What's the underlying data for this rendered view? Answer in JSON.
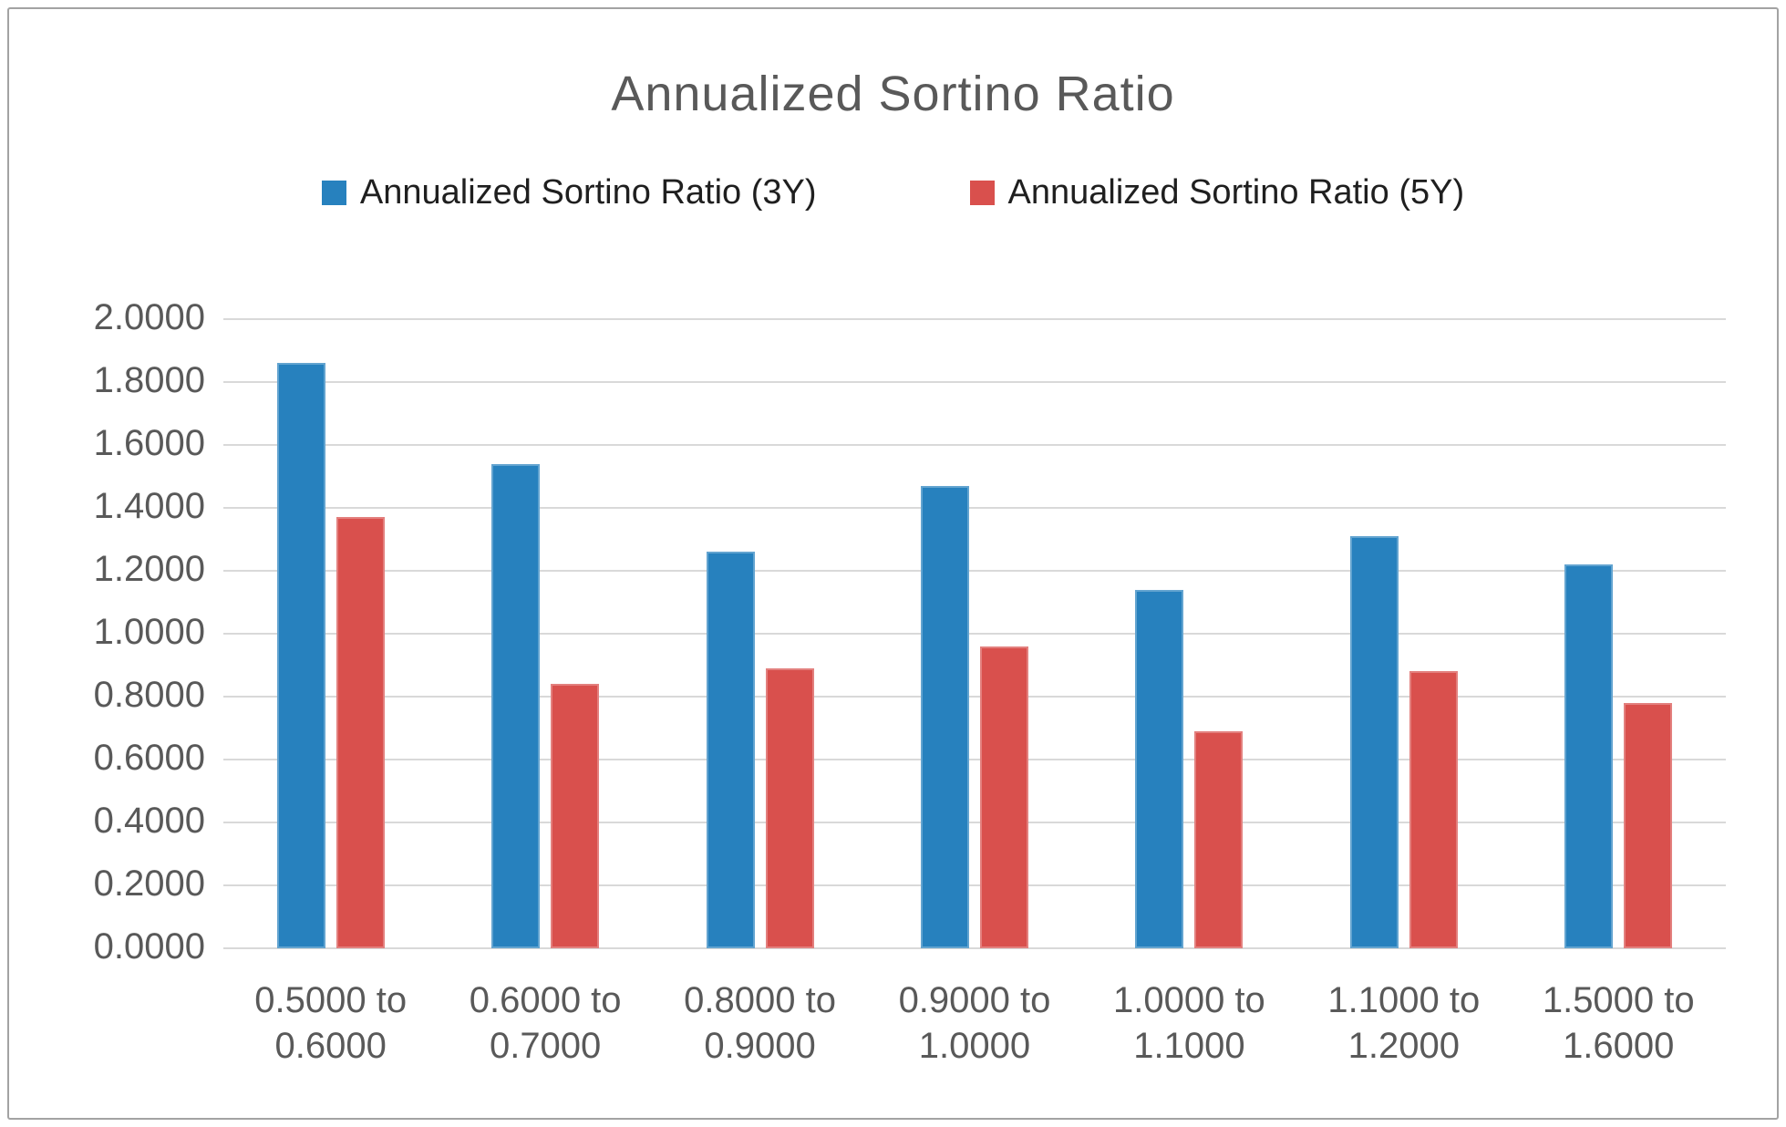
{
  "title": "Annualized Sortino Ratio",
  "colors": {
    "series_3y": "#2781BE",
    "series_5y": "#D9504D",
    "gridline": "#D9D9D9",
    "axis_text": "#595959",
    "legend_text": "#1F1F1F",
    "frame_border": "#A3A3A3"
  },
  "chart_data": {
    "type": "bar",
    "title": "Annualized Sortino Ratio",
    "grid": true,
    "legend_position": "top",
    "ylim": [
      0.0,
      2.0
    ],
    "ytick_step": 0.2,
    "yticks": [
      {
        "value": 2.0,
        "label": "2.0000"
      },
      {
        "value": 1.8,
        "label": "1.8000"
      },
      {
        "value": 1.6,
        "label": "1.6000"
      },
      {
        "value": 1.4,
        "label": "1.4000"
      },
      {
        "value": 1.2,
        "label": "1.2000"
      },
      {
        "value": 1.0,
        "label": "1.0000"
      },
      {
        "value": 0.8,
        "label": "0.8000"
      },
      {
        "value": 0.6,
        "label": "0.6000"
      },
      {
        "value": 0.4,
        "label": "0.4000"
      },
      {
        "value": 0.2,
        "label": "0.2000"
      },
      {
        "value": 0.0,
        "label": "0.0000"
      }
    ],
    "categories": [
      {
        "lines": [
          "0.5000 to",
          "0.6000"
        ]
      },
      {
        "lines": [
          "0.6000 to",
          "0.7000"
        ]
      },
      {
        "lines": [
          "0.8000 to",
          "0.9000"
        ]
      },
      {
        "lines": [
          "0.9000 to",
          "1.0000"
        ]
      },
      {
        "lines": [
          "1.0000 to",
          "1.1000"
        ]
      },
      {
        "lines": [
          "1.1000 to",
          "1.2000"
        ]
      },
      {
        "lines": [
          "1.5000 to",
          "1.6000"
        ]
      }
    ],
    "series": [
      {
        "name": "Annualized Sortino Ratio (3Y)",
        "color": "#2781BE",
        "values": [
          1.86,
          1.54,
          1.26,
          1.47,
          1.14,
          1.31,
          1.22
        ]
      },
      {
        "name": "Annualized Sortino Ratio (5Y)",
        "color": "#D9504D",
        "values": [
          1.37,
          0.84,
          0.89,
          0.96,
          0.69,
          0.88,
          0.78
        ]
      }
    ]
  }
}
